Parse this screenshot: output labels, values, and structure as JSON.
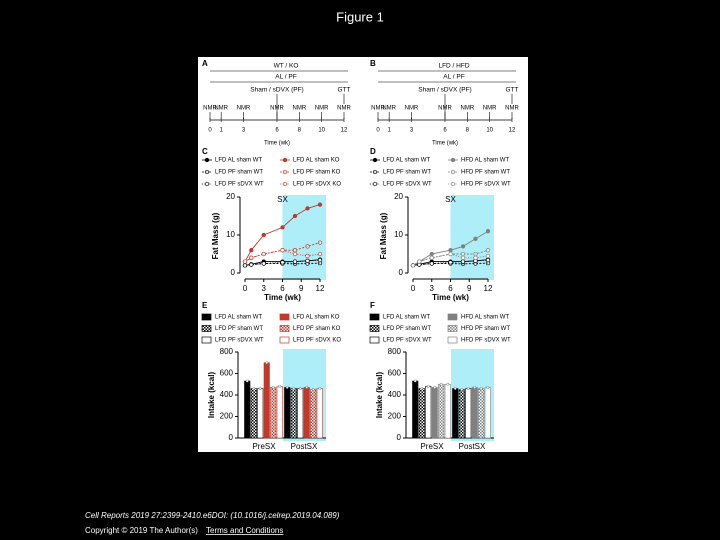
{
  "slide": {
    "title": "Figure 1",
    "citation": "Cell Reports 2019 27:2399-2410.e6DOI: (10.1016/j.celrep.2019.04.089)",
    "copyright": "Copyright © 2019 The Author(s)",
    "terms": "Terms and Conditions"
  },
  "panels": {
    "A": {
      "label": "A",
      "group": "WT / KO",
      "diet": "AL / PF",
      "surgery": "Sham / sDVX (PF)",
      "surgery_week": 6,
      "test": "GTT",
      "test_week": 12,
      "events": [
        {
          "label": "NMR",
          "week": 0
        },
        {
          "label": "NMR",
          "week": 1
        },
        {
          "label": "NMR",
          "week": 3
        },
        {
          "label": "NMR",
          "week": 6
        },
        {
          "label": "NMR",
          "week": 8
        },
        {
          "label": "NMR",
          "week": 10
        },
        {
          "label": "NMR",
          "week": 12
        }
      ],
      "xlim": [
        0,
        12
      ],
      "xticks": [
        0,
        1,
        3,
        6,
        8,
        10,
        12
      ],
      "xlabel": "Time (wk)"
    },
    "B": {
      "label": "B",
      "group": "LFD / HFD",
      "diet": "AL / PF",
      "surgery": "Sham / sDVX (PF)",
      "surgery_week": 6,
      "test": "GTT",
      "test_week": 12,
      "events": [
        {
          "label": "NMR",
          "week": 0
        },
        {
          "label": "NMR",
          "week": 1
        },
        {
          "label": "NMR",
          "week": 3
        },
        {
          "label": "NMR",
          "week": 6
        },
        {
          "label": "NMR",
          "week": 8
        },
        {
          "label": "NMR",
          "week": 10
        },
        {
          "label": "NMR",
          "week": 12
        }
      ],
      "xlim": [
        0,
        12
      ],
      "xticks": [
        0,
        1,
        3,
        6,
        8,
        10,
        12
      ],
      "xlabel": "Time (wk)"
    },
    "C": {
      "label": "C",
      "annotation": "SX",
      "shade_from": 6,
      "x": [
        0,
        1,
        3,
        6,
        8,
        10,
        12
      ],
      "xlim": [
        0,
        12
      ],
      "xticks": [
        0,
        3,
        6,
        9,
        12
      ],
      "ylim": [
        0,
        20
      ],
      "yticks": [
        0,
        10,
        20
      ],
      "xlabel": "Time (wk)",
      "ylabel": "Fat Mass (g)",
      "series": [
        {
          "name": "LFD AL sham WT",
          "color": "#000000",
          "style": "solid",
          "values": [
            2,
            2.3,
            3,
            3,
            3,
            3.2,
            3.5
          ]
        },
        {
          "name": "LFD PF sham WT",
          "color": "#000000",
          "style": "checker",
          "values": [
            2,
            2.2,
            2.5,
            2.5,
            2.4,
            2.5,
            2.6
          ]
        },
        {
          "name": "LFD PF sDVX WT",
          "color": "#000000",
          "style": "open",
          "values": [
            2,
            2.2,
            2.5,
            2.8,
            3,
            3.2,
            3.4
          ]
        },
        {
          "name": "LFD AL sham KO",
          "color": "#c0392b",
          "style": "solid",
          "values": [
            3,
            6,
            10,
            12,
            15,
            17,
            18
          ]
        },
        {
          "name": "LFD PF sham KO",
          "color": "#c0392b",
          "style": "checker",
          "values": [
            3,
            4,
            5,
            6,
            6,
            7,
            8
          ]
        },
        {
          "name": "LFD PF sDVX KO",
          "color": "#c0392b",
          "style": "open",
          "values": [
            3,
            4,
            5,
            6,
            5,
            4.5,
            5
          ]
        }
      ]
    },
    "D": {
      "label": "D",
      "annotation": "SX",
      "shade_from": 6,
      "x": [
        0,
        1,
        3,
        6,
        8,
        10,
        12
      ],
      "xlim": [
        0,
        12
      ],
      "xticks": [
        0,
        3,
        6,
        9,
        12
      ],
      "ylim": [
        0,
        20
      ],
      "yticks": [
        0,
        10,
        20
      ],
      "xlabel": "Time (wk)",
      "ylabel": "Fat Mass (g)",
      "series": [
        {
          "name": "LFD AL sham WT",
          "color": "#000000",
          "style": "solid",
          "values": [
            2,
            2.3,
            3,
            3,
            3,
            3.2,
            3.5
          ]
        },
        {
          "name": "LFD PF sham WT",
          "color": "#000000",
          "style": "checker",
          "values": [
            2,
            2.2,
            2.5,
            2.5,
            2.4,
            2.5,
            2.6
          ]
        },
        {
          "name": "LFD PF sDVX WT",
          "color": "#000000",
          "style": "open",
          "values": [
            2,
            2.2,
            2.5,
            2.8,
            3,
            3.2,
            3.4
          ]
        },
        {
          "name": "HFD AL sham WT",
          "color": "#808080",
          "style": "solid",
          "values": [
            2,
            3,
            5,
            6,
            7,
            9,
            11
          ]
        },
        {
          "name": "HFD PF sham WT",
          "color": "#808080",
          "style": "checker",
          "values": [
            2,
            3,
            4,
            5,
            5,
            5,
            6
          ]
        },
        {
          "name": "HFD PF sDVX WT",
          "color": "#808080",
          "style": "open",
          "values": [
            2,
            3,
            4,
            5,
            4,
            4,
            4.5
          ]
        }
      ]
    },
    "E": {
      "label": "E",
      "categories": [
        "PreSX",
        "PostSX"
      ],
      "ylim": [
        0,
        800
      ],
      "yticks": [
        0,
        200,
        400,
        600,
        800
      ],
      "ylabel": "Intake (kcal)",
      "series": [
        {
          "name": "LFD AL sham WT",
          "color": "#000000",
          "style": "solid",
          "values": [
            530,
            470
          ]
        },
        {
          "name": "LFD PF sham WT",
          "color": "#000000",
          "style": "checker",
          "values": [
            460,
            460
          ]
        },
        {
          "name": "LFD PF sDVX WT",
          "color": "#000000",
          "style": "open",
          "values": [
            460,
            460
          ]
        },
        {
          "name": "LFD AL sham KO",
          "color": "#c0392b",
          "style": "solid",
          "values": [
            700,
            470
          ]
        },
        {
          "name": "LFD PF sham KO",
          "color": "#c0392b",
          "style": "checker",
          "values": [
            470,
            450
          ]
        },
        {
          "name": "LFD PF sDVX KO",
          "color": "#c0392b",
          "style": "open",
          "values": [
            480,
            460
          ]
        }
      ]
    },
    "F": {
      "label": "F",
      "categories": [
        "PreSX",
        "PostSX"
      ],
      "ylim": [
        0,
        800
      ],
      "yticks": [
        0,
        200,
        400,
        600,
        800
      ],
      "ylabel": "Intake (kcal)",
      "series": [
        {
          "name": "LFD AL sham WT",
          "color": "#000000",
          "style": "solid",
          "values": [
            530,
            460
          ]
        },
        {
          "name": "LFD PF sham WT",
          "color": "#000000",
          "style": "checker",
          "values": [
            460,
            450
          ]
        },
        {
          "name": "LFD PF sDVX WT",
          "color": "#000000",
          "style": "open",
          "values": [
            480,
            460
          ]
        },
        {
          "name": "HFD AL sham WT",
          "color": "#808080",
          "style": "solid",
          "values": [
            470,
            470
          ]
        },
        {
          "name": "HFD PF sham WT",
          "color": "#808080",
          "style": "checker",
          "values": [
            500,
            460
          ]
        },
        {
          "name": "HFD PF sDVX WT",
          "color": "#808080",
          "style": "open",
          "values": [
            500,
            470
          ]
        }
      ]
    }
  }
}
